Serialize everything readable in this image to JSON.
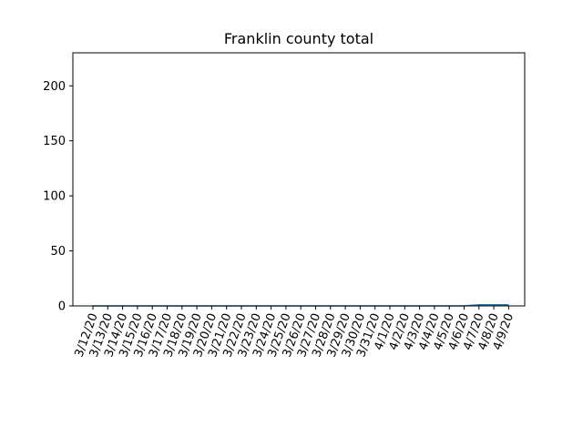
{
  "chart_data": {
    "type": "line",
    "title": "Franklin county total",
    "xlabel": "",
    "ylabel": "",
    "x": [
      "3/12/20",
      "3/13/20",
      "3/14/20",
      "3/15/20",
      "3/16/20",
      "3/17/20",
      "3/18/20",
      "3/19/20",
      "3/20/20",
      "3/21/20",
      "3/22/20",
      "3/23/20",
      "3/24/20",
      "3/25/20",
      "3/26/20",
      "3/27/20",
      "3/28/20",
      "3/29/20",
      "3/30/20",
      "3/31/20",
      "4/1/20",
      "4/2/20",
      "4/3/20",
      "4/4/20",
      "4/5/20",
      "4/6/20",
      "4/7/20",
      "4/8/20",
      "4/9/20"
    ],
    "series": [
      {
        "values": [
          0,
          0,
          0,
          0,
          0,
          0,
          0,
          0,
          0,
          0,
          0,
          0,
          0,
          0,
          0,
          0,
          0,
          0,
          0,
          0,
          0,
          0,
          0,
          0,
          0,
          0,
          1,
          1,
          1
        ]
      }
    ],
    "ylim": [
      0,
      230
    ],
    "yticks": [
      0,
      50,
      100,
      150,
      200
    ],
    "grid": false,
    "line_color": "#1f77b4"
  }
}
